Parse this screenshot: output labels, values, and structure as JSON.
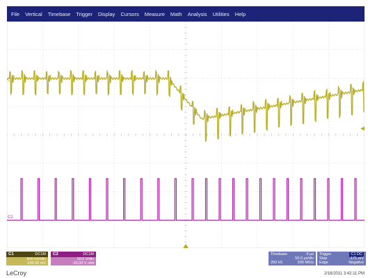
{
  "menu": [
    "File",
    "Vertical",
    "Timebase",
    "Trigger",
    "Display",
    "Cursors",
    "Measure",
    "Math",
    "Analysis",
    "Utilities",
    "Help"
  ],
  "channels": {
    "c1": {
      "marker": "C1",
      "color": "#b9ae28"
    },
    "c2": {
      "marker": "C2",
      "color": "#b01ea6"
    }
  },
  "descriptors": {
    "ch1": {
      "tag": "C1",
      "label": "DC1M",
      "scale": "500 mV/div",
      "offset": "-100.00 mV"
    },
    "ch2": {
      "tag": "C2",
      "label": "DC1M",
      "scale": "10.0 V/div",
      "offset": "-30.00 V ofst"
    }
  },
  "timebase": {
    "title": "Timebase",
    "delay": "0 µs",
    "time_div": "50.0 µs/div",
    "samples": "250 kS",
    "sample_rate": "500 MS/s"
  },
  "trigger": {
    "title": "Trigger",
    "mode": "Stop",
    "level": "-171 mV",
    "type": "Edge",
    "slope": "Negative",
    "badge": "C1 DC"
  },
  "brand": "LeCroy",
  "timestamp": "2/16/2011 3:42:11 PM"
}
